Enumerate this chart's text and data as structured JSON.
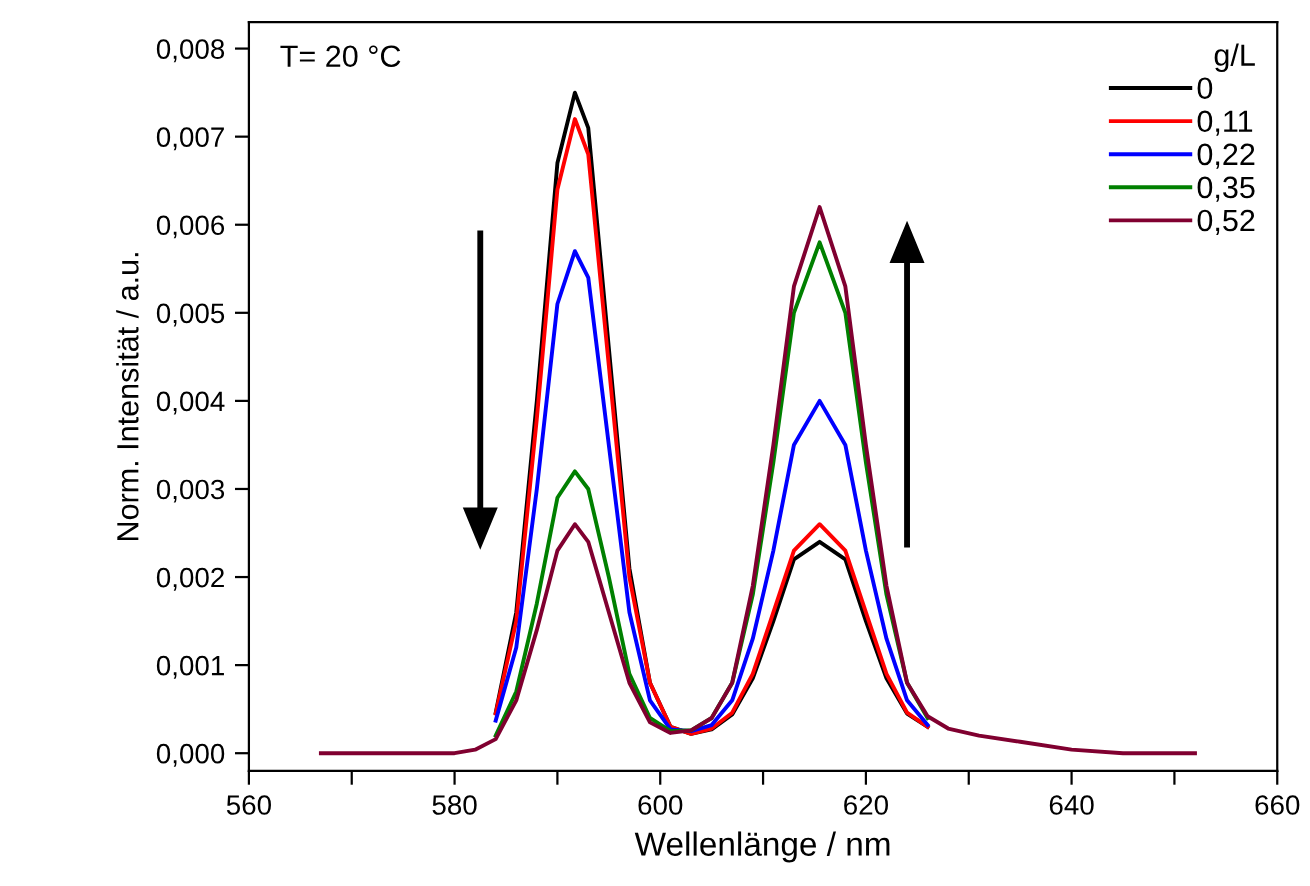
{
  "chart_data": {
    "type": "line",
    "xlabel": "Wellenlänge / nm",
    "ylabel": "Norm. Intensität / a.u.",
    "legend_title": "g/L",
    "annotations": [
      "T= 20 °C"
    ],
    "x": [
      567,
      578,
      580,
      582,
      584,
      586,
      588,
      590,
      591.7,
      593,
      595,
      597,
      599,
      601,
      603,
      605,
      607,
      609,
      611,
      613,
      615.5,
      618,
      620,
      622,
      624,
      626,
      628,
      631,
      635,
      640,
      645,
      652
    ],
    "series": [
      {
        "name": "0",
        "color": "#000000",
        "x": [
          584,
          586,
          588,
          590,
          591.7,
          593,
          595,
          597,
          599,
          601,
          603,
          605,
          607,
          609,
          611,
          613,
          615.5,
          618,
          620,
          622,
          624,
          626
        ],
        "values": [
          0.00046,
          0.0016,
          0.004,
          0.0067,
          0.0075,
          0.0071,
          0.0046,
          0.0021,
          0.0008,
          0.0003,
          0.00022,
          0.00027,
          0.00044,
          0.00085,
          0.0015,
          0.0022,
          0.0024,
          0.0022,
          0.0015,
          0.00085,
          0.00045,
          0.0003
        ]
      },
      {
        "name": "0,11",
        "color": "#ff0000",
        "x": [
          584,
          586,
          588,
          590,
          591.7,
          593,
          595,
          597,
          599,
          601,
          603,
          605,
          607,
          609,
          611,
          613,
          615.5,
          618,
          620,
          622,
          624,
          626
        ],
        "values": [
          0.00045,
          0.0015,
          0.0038,
          0.0064,
          0.0072,
          0.0068,
          0.0044,
          0.002,
          0.0008,
          0.0003,
          0.00022,
          0.00028,
          0.00046,
          0.0009,
          0.0016,
          0.0023,
          0.0026,
          0.0023,
          0.0016,
          0.0009,
          0.00046,
          0.0003
        ]
      },
      {
        "name": "0,22",
        "color": "#0000ff",
        "x": [
          584,
          586,
          588,
          590,
          591.7,
          593,
          595,
          597,
          599,
          601,
          603,
          605,
          607,
          609,
          611,
          613,
          615.5,
          618,
          620,
          622,
          624,
          626
        ],
        "values": [
          0.00037,
          0.0012,
          0.003,
          0.0051,
          0.0057,
          0.0054,
          0.0035,
          0.0016,
          0.0006,
          0.00027,
          0.00025,
          0.00032,
          0.0006,
          0.0013,
          0.0023,
          0.0035,
          0.004,
          0.0035,
          0.0023,
          0.0013,
          0.0006,
          0.00032
        ]
      },
      {
        "name": "0,35",
        "color": "#008000",
        "x": [
          584,
          586,
          588,
          590,
          591.7,
          593,
          595,
          597,
          599,
          601,
          603,
          605,
          607,
          609,
          611,
          613,
          615.5,
          618,
          620,
          622,
          624,
          626
        ],
        "values": [
          0.0002,
          0.0007,
          0.0017,
          0.0029,
          0.0032,
          0.003,
          0.002,
          0.0009,
          0.0004,
          0.00025,
          0.00026,
          0.0004,
          0.0008,
          0.0018,
          0.0033,
          0.005,
          0.0058,
          0.005,
          0.0033,
          0.0018,
          0.0008,
          0.0004
        ]
      },
      {
        "name": "0,52",
        "color": "#800030",
        "values": [
          0,
          0,
          0,
          4e-05,
          0.00016,
          0.0006,
          0.0014,
          0.0023,
          0.0026,
          0.0024,
          0.0016,
          0.0008,
          0.00035,
          0.00023,
          0.00026,
          0.0004,
          0.0008,
          0.0019,
          0.0035,
          0.0053,
          0.0062,
          0.0053,
          0.0035,
          0.0019,
          0.0008,
          0.00042,
          0.00028,
          0.0002,
          0.00013,
          4e-05,
          0,
          0
        ]
      }
    ],
    "xlim": [
      560,
      660
    ],
    "xticks": [
      560,
      {
        "value": 570,
        "label": null
      },
      580,
      {
        "value": 590,
        "label": null
      },
      600,
      {
        "value": 610,
        "label": null
      },
      620,
      {
        "value": 630,
        "label": null
      },
      640,
      {
        "value": 650,
        "label": null
      },
      660
    ],
    "ylim": [
      -0.0002,
      0.0083
    ],
    "yticks": [
      {
        "value": 0,
        "label": "0,000"
      },
      {
        "value": 0.001,
        "label": "0,001"
      },
      {
        "value": 0.002,
        "label": "0,002"
      },
      {
        "value": 0.003,
        "label": "0,003"
      },
      {
        "value": 0.004,
        "label": "0,004"
      },
      {
        "value": 0.005,
        "label": "0,005"
      },
      {
        "value": 0.006,
        "label": "0,006"
      },
      {
        "value": 0.007,
        "label": "0,007"
      },
      {
        "value": 0.008,
        "label": "0,008"
      }
    ],
    "grid": false,
    "legend": "top right",
    "marker": "none",
    "line_style": "solid"
  }
}
